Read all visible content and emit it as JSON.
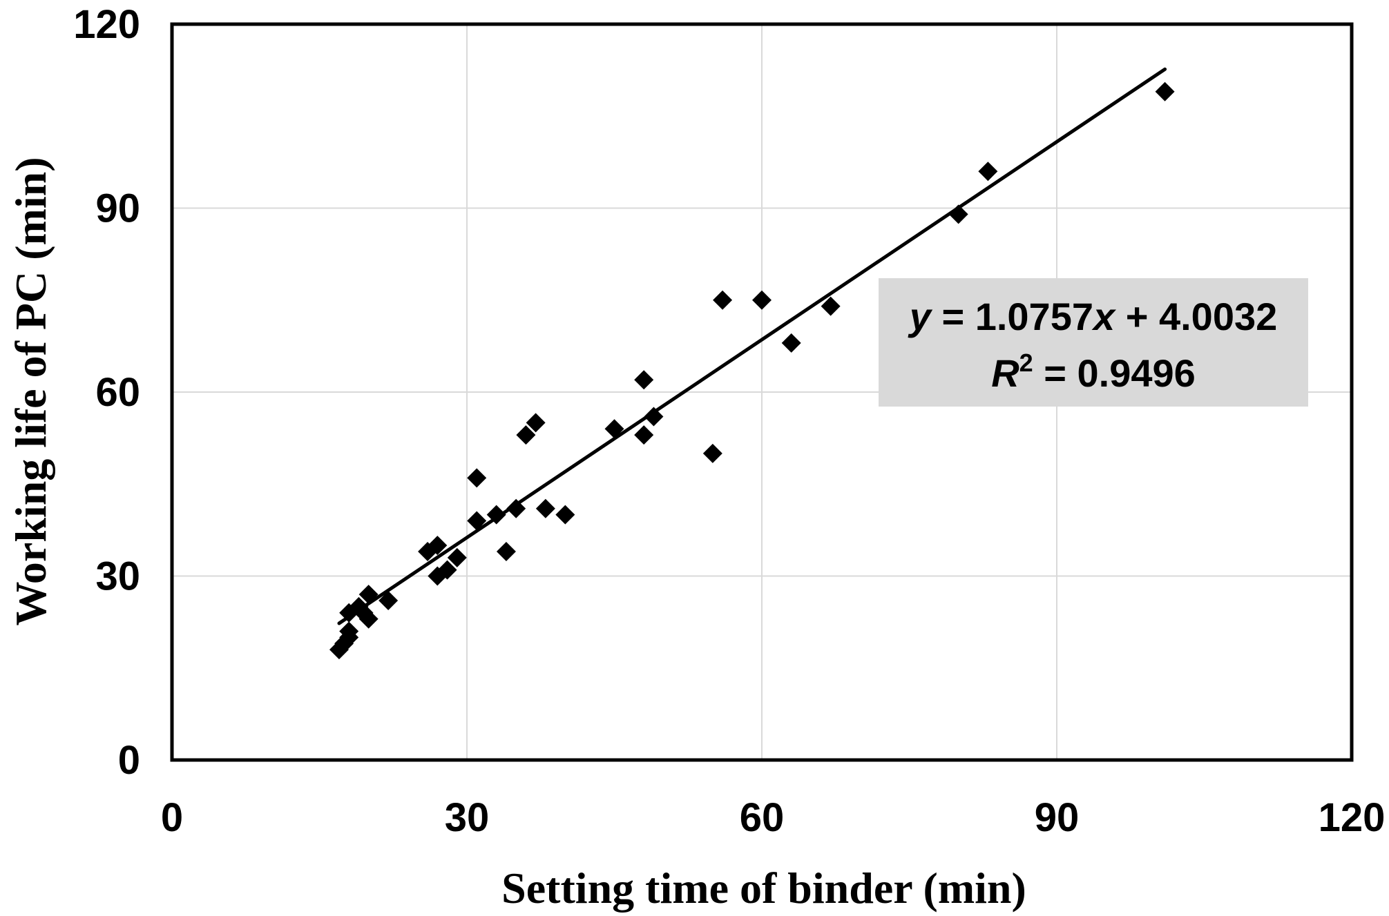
{
  "chart_data": {
    "type": "scatter",
    "xlabel": "Setting time of binder (min)",
    "ylabel": "Working life of PC (min)",
    "xlim": [
      0,
      120
    ],
    "ylim": [
      0,
      120
    ],
    "xticks": [
      0,
      30,
      60,
      90,
      120
    ],
    "yticks": [
      0,
      30,
      60,
      90,
      120
    ],
    "xtick_labels": [
      "0",
      "30",
      "60",
      "90",
      "120"
    ],
    "ytick_labels": [
      "0",
      "30",
      "60",
      "90",
      "120"
    ],
    "grid": true,
    "series": [
      {
        "marker": "diamond",
        "color": "#000000",
        "points": [
          [
            17,
            18
          ],
          [
            17.5,
            19
          ],
          [
            18,
            20
          ],
          [
            18,
            21
          ],
          [
            18,
            24
          ],
          [
            19,
            25
          ],
          [
            19.5,
            24
          ],
          [
            20,
            23
          ],
          [
            20,
            27
          ],
          [
            22,
            26
          ],
          [
            26,
            34
          ],
          [
            27,
            30
          ],
          [
            27,
            35
          ],
          [
            28,
            31
          ],
          [
            29,
            33
          ],
          [
            31,
            39
          ],
          [
            31,
            46
          ],
          [
            33,
            40
          ],
          [
            34,
            34
          ],
          [
            35,
            41
          ],
          [
            36,
            53
          ],
          [
            37,
            55
          ],
          [
            38,
            41
          ],
          [
            40,
            40
          ],
          [
            45,
            54
          ],
          [
            48,
            62
          ],
          [
            48,
            53
          ],
          [
            49,
            56
          ],
          [
            55,
            50
          ],
          [
            56,
            75
          ],
          [
            60,
            75
          ],
          [
            63,
            68
          ],
          [
            67,
            74
          ],
          [
            80,
            89
          ],
          [
            83,
            96
          ],
          [
            101,
            109
          ]
        ]
      }
    ],
    "trendline": {
      "type": "linear",
      "slope": 1.0757,
      "intercept": 4.0032,
      "x_range": [
        17,
        101
      ],
      "color": "#000000"
    },
    "annotation": {
      "equation": {
        "y_var": "y",
        "equals_part": " = 1.0757",
        "x_var": "x",
        "rest": " + 4.0032"
      },
      "r_squared": {
        "r_var": "R",
        "superscript": "2",
        "rest": " = 0.9496"
      },
      "box_color": "#d9d9d9",
      "position": "right"
    }
  }
}
